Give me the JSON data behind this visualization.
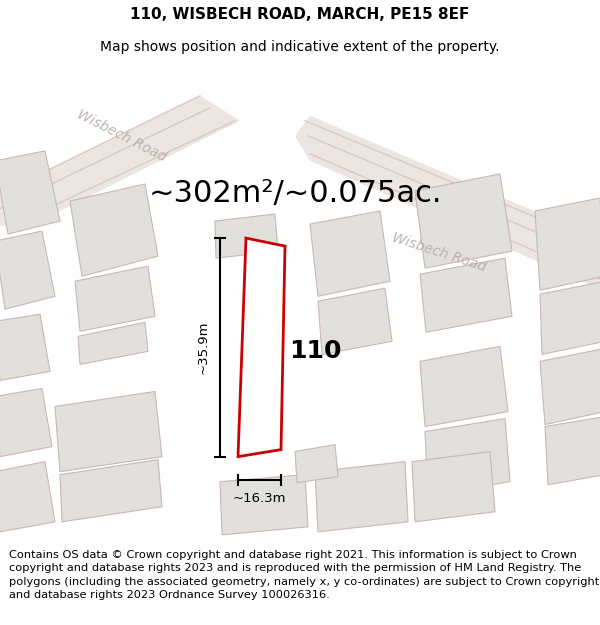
{
  "title": "110, WISBECH ROAD, MARCH, PE15 8EF",
  "subtitle": "Map shows position and indicative extent of the property.",
  "area_text": "~302m²/~0.075ac.",
  "width_label": "~16.3m",
  "height_label": "~35.9m",
  "house_number": "110",
  "footer": "Contains OS data © Crown copyright and database right 2021. This information is subject to Crown copyright and database rights 2023 and is reproduced with the permission of HM Land Registry. The polygons (including the associated geometry, namely x, y co-ordinates) are subject to Crown copyright and database rights 2023 Ordnance Survey 100026316.",
  "map_bg": "#f2f0ee",
  "building_fill": "#e2e0dc",
  "building_edge": "#c8b8b4",
  "road_line_color": "#ddc8c4",
  "red_outline": "#cc0000",
  "road_label_color": "#b8aaaa",
  "title_fontsize": 11,
  "subtitle_fontsize": 10,
  "area_fontsize": 22,
  "footer_fontsize": 8.2,
  "house_number_fontsize": 18
}
